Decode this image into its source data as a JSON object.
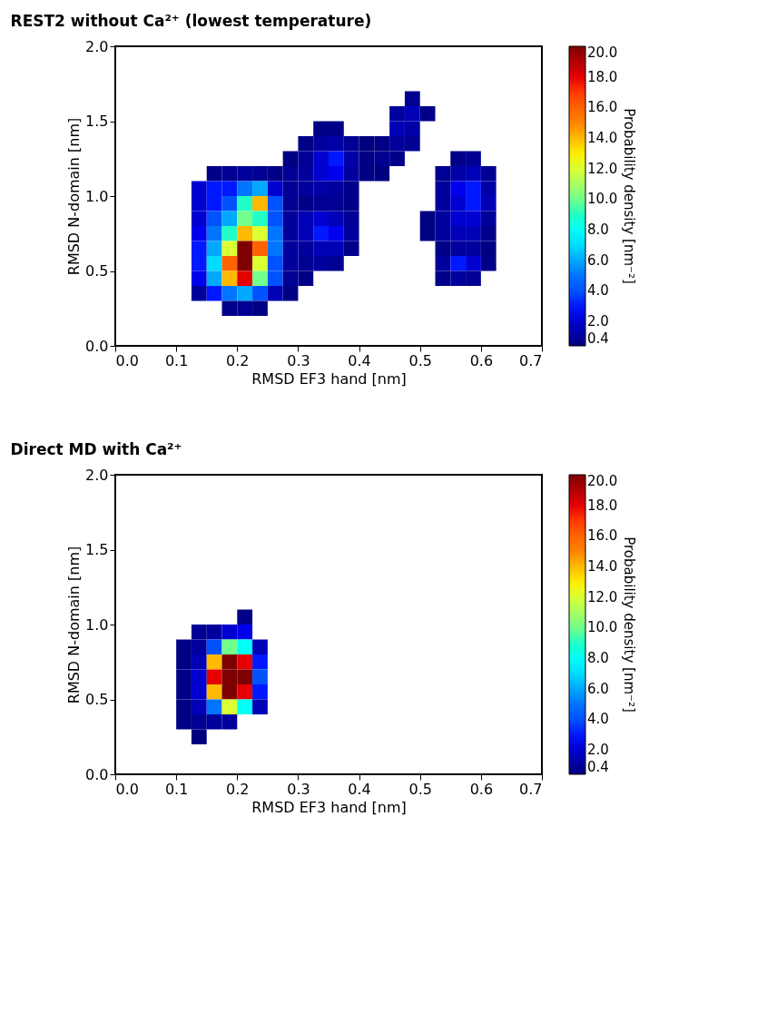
{
  "chart_data": [
    {
      "type": "heatmap",
      "title": "REST2 without Ca²⁺ (lowest temperature)",
      "xlabel": "RMSD EF3 hand [nm]",
      "ylabel": "RMSD N-domain [nm]",
      "clabel": "Probability density [nm⁻²]",
      "xlim": [
        0,
        0.7
      ],
      "ylim": [
        0,
        2
      ],
      "xticks": [
        {
          "value": 0,
          "label": "0.0"
        },
        {
          "value": 0.1,
          "label": "0.1"
        },
        {
          "value": 0.2,
          "label": "0.2"
        },
        {
          "value": 0.3,
          "label": "0.3"
        },
        {
          "value": 0.4,
          "label": "0.4"
        },
        {
          "value": 0.5,
          "label": "0.5"
        },
        {
          "value": 0.6,
          "label": "0.6"
        },
        {
          "value": 0.7,
          "label": "0.7"
        }
      ],
      "yticks": [
        {
          "value": 0,
          "label": "0.0"
        },
        {
          "value": 0.5,
          "label": "0.5"
        },
        {
          "value": 1,
          "label": "1.0"
        },
        {
          "value": 1.5,
          "label": "1.5"
        },
        {
          "value": 2,
          "label": "2.0"
        }
      ],
      "clim": [
        0.4,
        20
      ],
      "cticks": [
        0.4,
        {
          "value": 2,
          "label": "2.0"
        },
        {
          "value": 4,
          "label": "4.0"
        },
        {
          "value": 6,
          "label": "6.0"
        },
        {
          "value": 8,
          "label": "8.0"
        },
        {
          "value": 10,
          "label": "10.0"
        },
        {
          "value": 12,
          "label": "12.0"
        },
        {
          "value": 14,
          "label": "14.0"
        },
        {
          "value": 16,
          "label": "16.0"
        },
        {
          "value": 18,
          "label": "18.0"
        },
        {
          "value": 20,
          "label": "20.0"
        }
      ],
      "x": [
        0.1375,
        0.1625,
        0.1875,
        0.2125,
        0.2375,
        0.2625,
        0.2875,
        0.3125,
        0.3375,
        0.3625,
        0.3875,
        0.4125,
        0.4375,
        0.4625,
        0.4875,
        0.5125,
        0.5375,
        0.5625,
        0.5875,
        0.6125
      ],
      "y": [
        1.65,
        1.55,
        1.45,
        1.35,
        1.25,
        1.15,
        1.05,
        0.95,
        0.85,
        0.75,
        0.65,
        0.55,
        0.45,
        0.35,
        0.25
      ],
      "cells": [
        [
          null,
          null,
          null,
          null,
          null,
          null,
          null,
          null,
          null,
          null,
          null,
          null,
          null,
          null,
          0.8,
          null,
          null,
          null,
          null,
          null
        ],
        [
          null,
          null,
          null,
          null,
          null,
          null,
          null,
          null,
          null,
          null,
          null,
          null,
          null,
          1.0,
          1.5,
          0.6,
          null,
          null,
          null,
          null
        ],
        [
          null,
          null,
          null,
          null,
          null,
          null,
          null,
          null,
          0.5,
          0.6,
          null,
          null,
          null,
          1.5,
          1.2,
          null,
          null,
          null,
          null,
          null
        ],
        [
          null,
          null,
          null,
          null,
          null,
          null,
          null,
          0.5,
          1.0,
          1.2,
          0.8,
          0.4,
          0.5,
          1.0,
          0.8,
          null,
          null,
          null,
          null,
          null
        ],
        [
          null,
          null,
          null,
          null,
          null,
          null,
          0.5,
          0.8,
          2.0,
          3.0,
          1.2,
          0.5,
          0.8,
          0.6,
          null,
          null,
          null,
          0.6,
          0.8,
          null
        ],
        [
          null,
          0.6,
          0.8,
          1.0,
          0.8,
          0.6,
          0.8,
          1.0,
          2.0,
          2.5,
          1.0,
          0.5,
          0.4,
          null,
          null,
          null,
          0.8,
          1.2,
          1.5,
          0.8
        ],
        [
          2.0,
          3.0,
          3.0,
          5.0,
          6.0,
          2.0,
          0.8,
          1.0,
          1.2,
          1.0,
          0.6,
          null,
          null,
          null,
          null,
          null,
          1.0,
          2.5,
          3.0,
          1.2
        ],
        [
          2.0,
          3.0,
          4.0,
          9.0,
          14.0,
          4.0,
          0.8,
          0.6,
          0.8,
          0.8,
          0.6,
          null,
          null,
          null,
          null,
          null,
          1.0,
          2.0,
          3.0,
          1.5
        ],
        [
          2.0,
          4.0,
          6.0,
          10.0,
          9.0,
          4.0,
          1.0,
          1.5,
          2.0,
          1.5,
          0.8,
          null,
          null,
          null,
          null,
          0.5,
          1.0,
          2.0,
          2.0,
          1.0
        ],
        [
          2.5,
          5.0,
          9.0,
          14.0,
          12.0,
          5.0,
          1.0,
          1.5,
          3.0,
          2.5,
          1.0,
          null,
          null,
          null,
          null,
          0.5,
          1.0,
          1.5,
          1.5,
          0.6
        ],
        [
          3.0,
          6.0,
          12.0,
          20.0,
          16.0,
          5.0,
          1.0,
          1.0,
          1.5,
          1.5,
          0.6,
          null,
          null,
          null,
          null,
          null,
          0.6,
          1.0,
          1.0,
          0.5
        ],
        [
          3.0,
          7.0,
          16.0,
          20.0,
          12.0,
          4.0,
          1.0,
          0.8,
          1.0,
          0.8,
          null,
          null,
          null,
          null,
          null,
          null,
          1.0,
          3.0,
          2.0,
          0.6
        ],
        [
          2.5,
          6.0,
          14.0,
          18.0,
          10.0,
          4.0,
          0.8,
          0.5,
          null,
          null,
          null,
          null,
          null,
          null,
          null,
          null,
          0.6,
          1.0,
          0.8,
          null
        ],
        [
          1.0,
          3.0,
          5.0,
          6.0,
          4.0,
          1.5,
          0.5,
          null,
          null,
          null,
          null,
          null,
          null,
          null,
          null,
          null,
          null,
          null,
          null,
          null
        ],
        [
          null,
          null,
          0.6,
          0.8,
          0.5,
          null,
          null,
          null,
          null,
          null,
          null,
          null,
          null,
          null,
          null,
          null,
          null,
          null,
          null,
          null
        ]
      ]
    },
    {
      "type": "heatmap",
      "title": "Direct MD with Ca²⁺",
      "xlabel": "RMSD EF3 hand [nm]",
      "ylabel": "RMSD N-domain [nm]",
      "clabel": "Probability density [nm⁻²]",
      "xlim": [
        0,
        0.7
      ],
      "ylim": [
        0,
        2
      ],
      "xticks": [
        {
          "value": 0,
          "label": "0.0"
        },
        {
          "value": 0.1,
          "label": "0.1"
        },
        {
          "value": 0.2,
          "label": "0.2"
        },
        {
          "value": 0.3,
          "label": "0.3"
        },
        {
          "value": 0.4,
          "label": "0.4"
        },
        {
          "value": 0.5,
          "label": "0.5"
        },
        {
          "value": 0.6,
          "label": "0.6"
        },
        {
          "value": 0.7,
          "label": "0.7"
        }
      ],
      "yticks": [
        {
          "value": 0,
          "label": "0.0"
        },
        {
          "value": 0.5,
          "label": "0.5"
        },
        {
          "value": 1,
          "label": "1.0"
        },
        {
          "value": 1.5,
          "label": "1.5"
        },
        {
          "value": 2,
          "label": "2.0"
        }
      ],
      "clim": [
        0.4,
        20
      ],
      "cticks": [
        0.4,
        {
          "value": 2,
          "label": "2.0"
        },
        {
          "value": 4,
          "label": "4.0"
        },
        {
          "value": 6,
          "label": "6.0"
        },
        {
          "value": 8,
          "label": "8.0"
        },
        {
          "value": 10,
          "label": "10.0"
        },
        {
          "value": 12,
          "label": "12.0"
        },
        {
          "value": 14,
          "label": "14.0"
        },
        {
          "value": 16,
          "label": "16.0"
        },
        {
          "value": 18,
          "label": "18.0"
        },
        {
          "value": 20,
          "label": "20.0"
        }
      ],
      "x": [
        0.1125,
        0.1375,
        0.1625,
        0.1875,
        0.2125,
        0.2375
      ],
      "y": [
        1.05,
        0.95,
        0.85,
        0.75,
        0.65,
        0.55,
        0.45,
        0.35,
        0.25
      ],
      "cells": [
        [
          null,
          null,
          null,
          null,
          0.6,
          null
        ],
        [
          null,
          0.8,
          1.0,
          2.0,
          2.5,
          null
        ],
        [
          0.5,
          1.0,
          4.0,
          10.0,
          8.0,
          1.5
        ],
        [
          0.5,
          1.5,
          14.0,
          20.0,
          18.0,
          3.0
        ],
        [
          0.6,
          2.0,
          18.0,
          20.0,
          20.0,
          4.0
        ],
        [
          0.6,
          2.0,
          14.0,
          20.0,
          18.0,
          3.0
        ],
        [
          0.5,
          1.5,
          5.0,
          12.0,
          8.0,
          1.5
        ],
        [
          0.5,
          0.8,
          1.0,
          1.0,
          null,
          null
        ],
        [
          null,
          0.4,
          null,
          null,
          null,
          null
        ]
      ]
    }
  ]
}
